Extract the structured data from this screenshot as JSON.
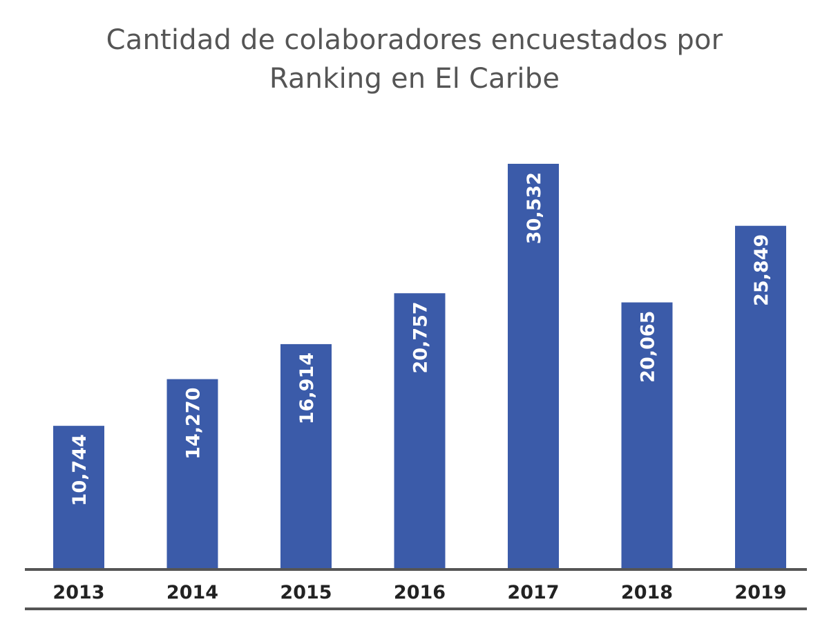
{
  "chart_data": {
    "type": "bar",
    "title_lines": [
      "Cantidad de colaboradores encuestados por",
      "Ranking en El Caribe"
    ],
    "categories": [
      "2013",
      "2014",
      "2015",
      "2016",
      "2017",
      "2018",
      "2019"
    ],
    "values": [
      10744,
      14270,
      16914,
      20757,
      30532,
      20065,
      25849
    ],
    "value_labels": [
      "10,744",
      "14,270",
      "16,914",
      "20,757",
      "30,532",
      "20,065",
      "25,849"
    ],
    "xlabel": "",
    "ylabel": "",
    "ylim": [
      0,
      30532
    ],
    "grid": false,
    "colors": {
      "bar": "#3b5ba9",
      "axis": "#555555",
      "title": "#555555",
      "bar_label": "#ffffff",
      "category_label": "#222222"
    }
  }
}
